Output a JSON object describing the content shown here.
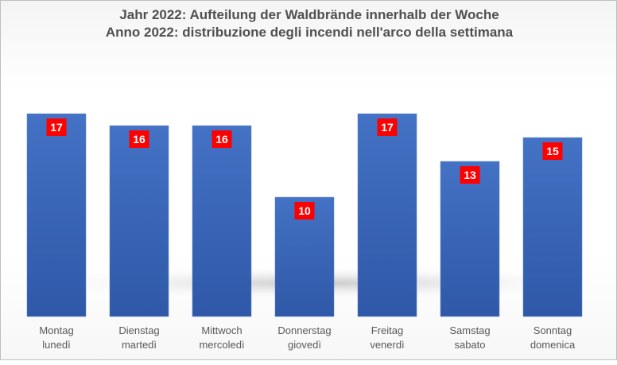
{
  "chart_data": {
    "type": "bar",
    "title": [
      "Jahr 2022: Aufteilung der Waldbrände innerhalb der Woche",
      "Anno 2022: distribuzione degli incendi nell'arco della settimana"
    ],
    "categories": [
      [
        "Montag",
        "lunedì"
      ],
      [
        "Dienstag",
        "martedì"
      ],
      [
        "Mittwoch",
        "mercoledì"
      ],
      [
        "Donnerstag",
        "giovedì"
      ],
      [
        "Freitag",
        "venerdì"
      ],
      [
        "Samstag",
        "sabato"
      ],
      [
        "Sonntag",
        "domenica"
      ]
    ],
    "values": [
      17,
      16,
      16,
      10,
      17,
      13,
      15
    ],
    "xlabel": "",
    "ylabel": "",
    "ylim": [
      0,
      26
    ],
    "grid": false,
    "legend": "none",
    "colors": {
      "bar": "#4472c4",
      "bar_dark": "#2f58a8",
      "label_bg": "#ff0000",
      "label_text": "#ffffff",
      "title": "#505050",
      "axis_text": "#595959"
    }
  }
}
